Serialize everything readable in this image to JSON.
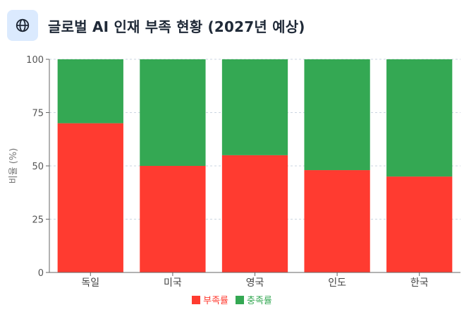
{
  "header": {
    "title": "글로벌 AI 인재 부족 현황 (2027년 예상)",
    "icon": "globe-icon"
  },
  "colors": {
    "shortage": "#ff3b30",
    "fulfillment": "#34a853",
    "icon_bg": "#dbeafe"
  },
  "chart_data": {
    "type": "bar",
    "stacked": true,
    "categories": [
      "독일",
      "미국",
      "영국",
      "인도",
      "한국"
    ],
    "series": [
      {
        "name": "부족률",
        "values": [
          70,
          50,
          55,
          48,
          45
        ]
      },
      {
        "name": "충족률",
        "values": [
          30,
          50,
          45,
          52,
          55
        ]
      }
    ],
    "ylabel": "비율 (%)",
    "xlabel": "",
    "ylim": [
      0,
      100
    ],
    "yticks": [
      0,
      25,
      50,
      75,
      100
    ],
    "grid": true,
    "legend": "bottom"
  }
}
